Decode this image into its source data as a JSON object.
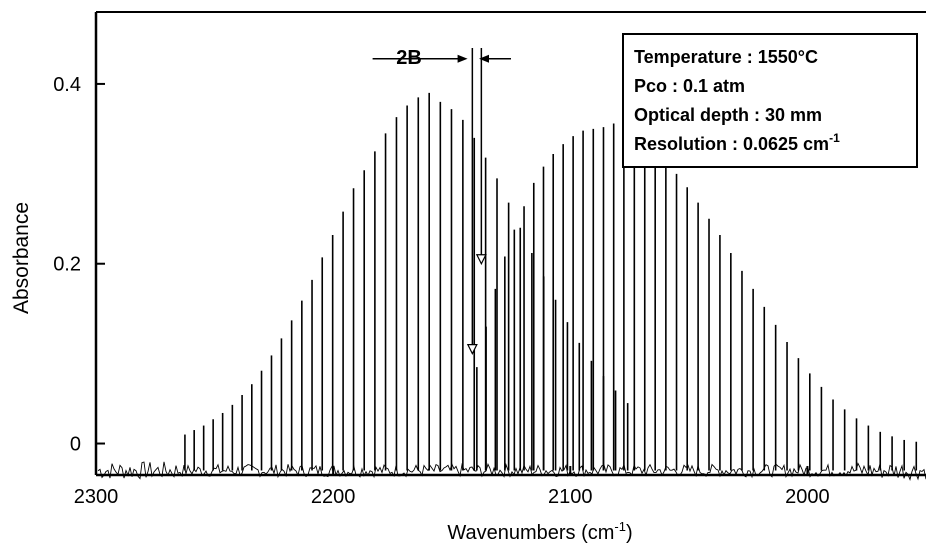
{
  "chart_data": {
    "type": "line",
    "title": "",
    "xlabel": "Wavenumbers",
    "xlabel_unit_base": "cm",
    "xlabel_unit_exp": "-1",
    "ylabel": "Absorbance",
    "xlim": [
      2300,
      1950
    ],
    "ylim": [
      -0.035,
      0.48
    ],
    "x_reversed": true,
    "x_ticks": [
      2300,
      2200,
      2100,
      2000
    ],
    "y_ticks": [
      0,
      0.2,
      0.4
    ],
    "x_tick_labels": [
      "2300",
      "2200",
      "2100",
      "2000"
    ],
    "y_tick_labels": [
      "0",
      "0.2",
      "0.4"
    ],
    "grid": false,
    "line_color": "#000000",
    "baseline": -0.03,
    "series": [
      {
        "branch": "R",
        "lines": [
          {
            "x": 2262.5,
            "y": 0.01
          },
          {
            "x": 2258.6,
            "y": 0.015
          },
          {
            "x": 2254.6,
            "y": 0.02
          },
          {
            "x": 2250.6,
            "y": 0.027
          },
          {
            "x": 2246.6,
            "y": 0.034
          },
          {
            "x": 2242.5,
            "y": 0.043
          },
          {
            "x": 2238.4,
            "y": 0.054
          },
          {
            "x": 2234.3,
            "y": 0.066
          },
          {
            "x": 2230.2,
            "y": 0.081
          },
          {
            "x": 2226.0,
            "y": 0.098
          },
          {
            "x": 2221.8,
            "y": 0.117
          },
          {
            "x": 2217.5,
            "y": 0.137
          },
          {
            "x": 2213.2,
            "y": 0.159
          },
          {
            "x": 2208.9,
            "y": 0.182
          },
          {
            "x": 2204.6,
            "y": 0.207
          },
          {
            "x": 2200.2,
            "y": 0.232
          },
          {
            "x": 2195.8,
            "y": 0.258
          },
          {
            "x": 2191.4,
            "y": 0.284
          },
          {
            "x": 2186.9,
            "y": 0.304
          },
          {
            "x": 2182.4,
            "y": 0.325
          },
          {
            "x": 2177.9,
            "y": 0.345
          },
          {
            "x": 2173.3,
            "y": 0.363
          },
          {
            "x": 2168.8,
            "y": 0.376
          },
          {
            "x": 2164.1,
            "y": 0.385
          },
          {
            "x": 2159.5,
            "y": 0.39
          },
          {
            "x": 2154.8,
            "y": 0.38
          },
          {
            "x": 2150.1,
            "y": 0.372
          },
          {
            "x": 2145.3,
            "y": 0.36
          },
          {
            "x": 2140.5,
            "y": 0.34
          },
          {
            "x": 2135.7,
            "y": 0.318
          },
          {
            "x": 2130.9,
            "y": 0.295
          },
          {
            "x": 2126.0,
            "y": 0.268
          },
          {
            "x": 2121.1,
            "y": 0.24
          },
          {
            "x": 2116.2,
            "y": 0.212
          },
          {
            "x": 2111.2,
            "y": 0.186
          },
          {
            "x": 2106.2,
            "y": 0.16
          },
          {
            "x": 2101.2,
            "y": 0.135
          },
          {
            "x": 2096.2,
            "y": 0.112
          },
          {
            "x": 2091.1,
            "y": 0.092
          },
          {
            "x": 2086.0,
            "y": 0.075
          },
          {
            "x": 2080.9,
            "y": 0.059
          },
          {
            "x": 2075.8,
            "y": 0.045
          }
        ]
      },
      {
        "branch": "P",
        "lines": [
          {
            "x": 2139.4,
            "y": 0.085
          },
          {
            "x": 2135.5,
            "y": 0.13
          },
          {
            "x": 2131.6,
            "y": 0.172
          },
          {
            "x": 2127.6,
            "y": 0.208
          },
          {
            "x": 2123.6,
            "y": 0.238
          },
          {
            "x": 2119.5,
            "y": 0.264
          },
          {
            "x": 2115.4,
            "y": 0.29
          },
          {
            "x": 2111.3,
            "y": 0.308
          },
          {
            "x": 2107.2,
            "y": 0.322
          },
          {
            "x": 2103.0,
            "y": 0.333
          },
          {
            "x": 2098.8,
            "y": 0.342
          },
          {
            "x": 2094.6,
            "y": 0.348
          },
          {
            "x": 2090.3,
            "y": 0.35
          },
          {
            "x": 2086.0,
            "y": 0.352
          },
          {
            "x": 2081.7,
            "y": 0.356
          },
          {
            "x": 2077.4,
            "y": 0.35
          },
          {
            "x": 2073.0,
            "y": 0.344
          },
          {
            "x": 2068.6,
            "y": 0.336
          },
          {
            "x": 2064.2,
            "y": 0.327
          },
          {
            "x": 2059.7,
            "y": 0.315
          },
          {
            "x": 2055.2,
            "y": 0.3
          },
          {
            "x": 2050.7,
            "y": 0.285
          },
          {
            "x": 2046.1,
            "y": 0.268
          },
          {
            "x": 2041.5,
            "y": 0.25
          },
          {
            "x": 2036.9,
            "y": 0.232
          },
          {
            "x": 2032.3,
            "y": 0.212
          },
          {
            "x": 2027.6,
            "y": 0.192
          },
          {
            "x": 2022.9,
            "y": 0.172
          },
          {
            "x": 2018.2,
            "y": 0.152
          },
          {
            "x": 2013.4,
            "y": 0.132
          },
          {
            "x": 2008.6,
            "y": 0.113
          },
          {
            "x": 2003.8,
            "y": 0.095
          },
          {
            "x": 1999.0,
            "y": 0.078
          },
          {
            "x": 1994.1,
            "y": 0.063
          },
          {
            "x": 1989.2,
            "y": 0.049
          },
          {
            "x": 1984.3,
            "y": 0.038
          },
          {
            "x": 1979.3,
            "y": 0.028
          },
          {
            "x": 1974.3,
            "y": 0.02
          },
          {
            "x": 1969.3,
            "y": 0.013
          },
          {
            "x": 1964.3,
            "y": 0.008
          },
          {
            "x": 1959.2,
            "y": 0.004
          },
          {
            "x": 1954.1,
            "y": 0.002
          }
        ]
      }
    ],
    "annotations": {
      "bracket_label": "2B",
      "bracket_x": [
        2143.3,
        2138.5
      ],
      "arrow_left": {
        "x": 2141.3,
        "y_top": 0.44,
        "y_tip": 0.1
      },
      "arrow_right": {
        "x": 2137.5,
        "y_top": 0.44,
        "y_tip": 0.2
      }
    },
    "legend": {
      "placement": "top-right",
      "lines": [
        {
          "label": "Temperature : 1550",
          "unit": "°C"
        },
        {
          "label": "Pco : 0.1 atm"
        },
        {
          "label": "Optical depth : 30 mm"
        },
        {
          "label": "Resolution : 0.0625 cm",
          "exp": "-1"
        }
      ]
    }
  }
}
